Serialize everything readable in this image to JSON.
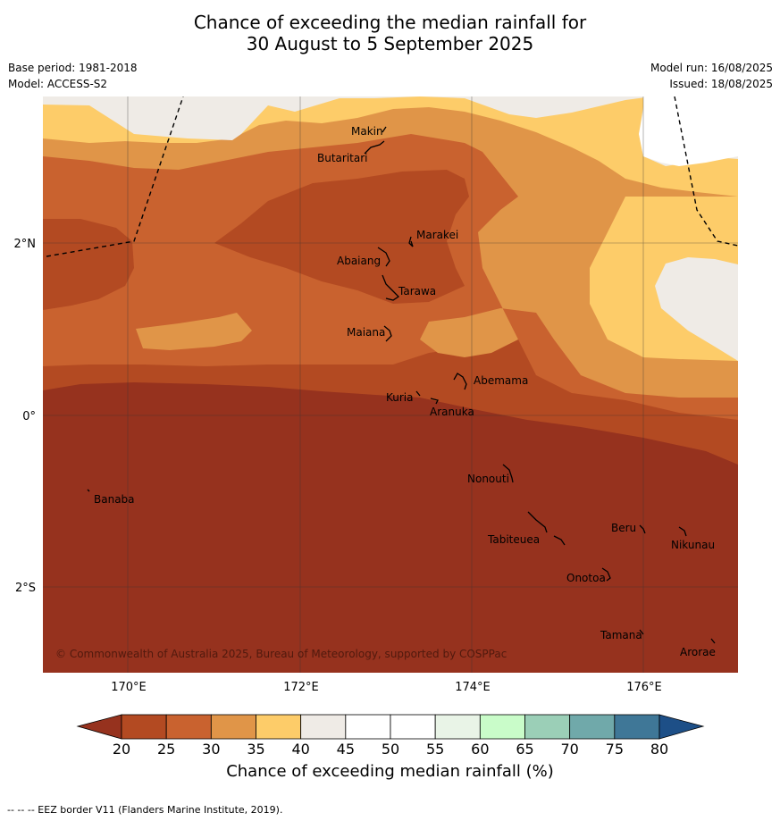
{
  "title": {
    "line1": "Chance of exceeding the median rainfall for",
    "line2": "30 August to 5 September 2025"
  },
  "meta": {
    "base_period": "Base period: 1981-2018",
    "model": "Model: ACCESS-S2",
    "model_run": "Model run: 16/08/2025",
    "issued": "Issued: 18/08/2025"
  },
  "axes": {
    "lat_labels": [
      "2°N",
      "0°",
      "2°S"
    ],
    "lon_labels": [
      "170°E",
      "172°E",
      "174°E",
      "176°E"
    ]
  },
  "islands": [
    "Makin",
    "Butaritari",
    "Marakei",
    "Abaiang",
    "Tarawa",
    "Maiana",
    "Abemama",
    "Kuria",
    "Aranuka",
    "Banaba",
    "Nonouti",
    "Beru",
    "Nikunau",
    "Tabiteuea",
    "Onotoa",
    "Tamana",
    "Arorae"
  ],
  "copyright": "© Commonwealth of Australia 2025, Bureau of Meteorology, supported by COSPPac",
  "colorbar": {
    "ticks": [
      "20",
      "25",
      "30",
      "35",
      "40",
      "45",
      "50",
      "55",
      "60",
      "65",
      "70",
      "75",
      "80"
    ],
    "colors": [
      "#b34a22",
      "#c9622f",
      "#e09548",
      "#fdcc69",
      "#efebe6",
      "#ffffff",
      "#ffffff",
      "#e9f4e7",
      "#c9fcc9",
      "#9bcfb7",
      "#70a9aa",
      "#3f7797"
    ],
    "under_color": "#96321e",
    "over_color": "#1d4f87",
    "label": "Chance of exceeding median rainfall (%)"
  },
  "footer": "-- -- -- EEZ border V11 (Flanders Marine Institute, 2019)."
}
